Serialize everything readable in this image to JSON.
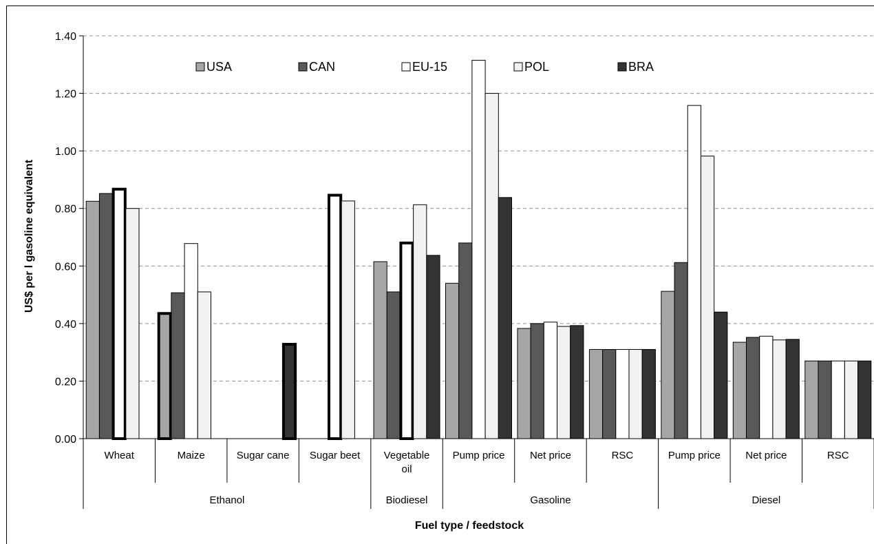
{
  "chart_data": {
    "type": "bar",
    "xlabel": "Fuel type / feedstock",
    "ylabel": "US$ per l gasoline equivalent",
    "ylim": [
      0,
      1.4
    ],
    "yticks": [
      "0.00",
      "0.20",
      "0.40",
      "0.60",
      "0.80",
      "1.00",
      "1.20",
      "1.40"
    ],
    "grid": "horizontal dashed",
    "legend_placement": "top",
    "categories": [
      "Wheat",
      "Maize",
      "Sugar cane",
      "Sugar beet",
      "Vegetable oil",
      "Pump price",
      "Net price",
      "RSC",
      "Pump price",
      "Net price",
      "RSC"
    ],
    "category_lines": [
      [
        "Wheat"
      ],
      [
        "Maize"
      ],
      [
        "Sugar cane"
      ],
      [
        "Sugar beet"
      ],
      [
        "Vegetable",
        "oil"
      ],
      [
        "Pump price"
      ],
      [
        "Net price"
      ],
      [
        "RSC"
      ],
      [
        "Pump price"
      ],
      [
        "Net price"
      ],
      [
        "RSC"
      ]
    ],
    "groups": [
      {
        "label": "Ethanol",
        "start": 0,
        "end": 3
      },
      {
        "label": "Biodiesel",
        "start": 4,
        "end": 4
      },
      {
        "label": "Gasoline",
        "start": 5,
        "end": 7
      },
      {
        "label": "Diesel",
        "start": 8,
        "end": 10
      }
    ],
    "series": [
      {
        "name": "USA",
        "color": "#a6a6a6",
        "values": [
          0.825,
          0.435,
          null,
          null,
          0.615,
          0.54,
          0.383,
          0.31,
          0.512,
          0.335,
          0.27
        ]
      },
      {
        "name": "CAN",
        "color": "#595959",
        "values": [
          0.852,
          0.507,
          null,
          null,
          0.51,
          0.68,
          0.4,
          0.31,
          0.612,
          0.352,
          0.27
        ]
      },
      {
        "name": "EU-15",
        "color": "#ffffff",
        "values": [
          0.867,
          0.678,
          null,
          0.846,
          0.68,
          1.315,
          0.405,
          0.31,
          1.158,
          0.356,
          0.27
        ]
      },
      {
        "name": "POL",
        "color": "#f2f2f2",
        "values": [
          0.8,
          0.51,
          null,
          0.826,
          0.813,
          1.2,
          0.39,
          0.31,
          0.982,
          0.343,
          0.27
        ]
      },
      {
        "name": "BRA",
        "color": "#333333",
        "values": [
          null,
          null,
          0.328,
          null,
          0.637,
          0.838,
          0.393,
          0.31,
          0.44,
          0.345,
          0.27
        ]
      }
    ],
    "highlighted_bars": [
      [
        2,
        0
      ],
      [
        0,
        1
      ],
      [
        4,
        2
      ],
      [
        2,
        3
      ],
      [
        2,
        4
      ]
    ]
  }
}
